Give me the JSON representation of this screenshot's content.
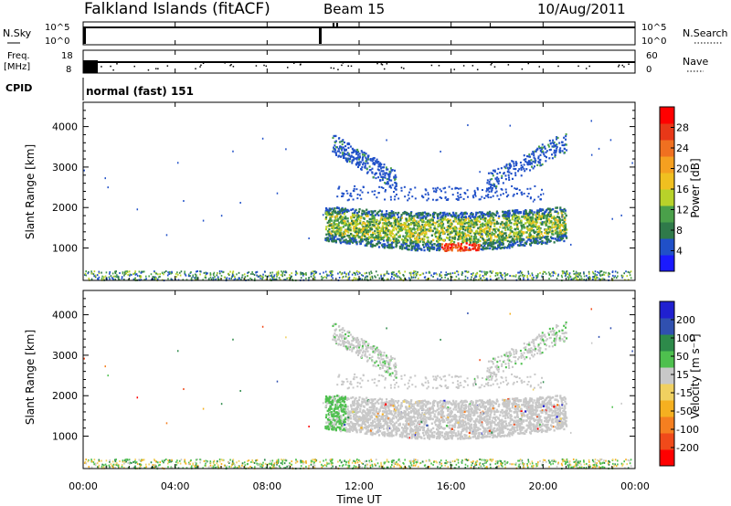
{
  "header": {
    "station": "Falkland Islands (fitACF)",
    "beam": "Beam 15",
    "date": "10/Aug/2011"
  },
  "left_labels": {
    "nsky": "N.Sky",
    "freq_line1": "Freq.",
    "freq_line2": "[MHz]",
    "cpid": "CPID"
  },
  "right_labels": {
    "nsearch": "N.Search",
    "nave": "Nave"
  },
  "cpid_text": "normal (fast) 151",
  "colors": {
    "power_scale": [
      "#1a1aff",
      "#2050c8",
      "#2f7a4a",
      "#4aa04a",
      "#b8d22a",
      "#f0c020",
      "#f5a020",
      "#f07020",
      "#e83818",
      "#ff0000"
    ],
    "velocity_scale": [
      "#ff0000",
      "#f04a1a",
      "#f57f20",
      "#f5b020",
      "#f0d060",
      "#c8c8c8",
      "#4ec04e",
      "#2d8a4a",
      "#3050b0",
      "#2020d0"
    ]
  },
  "chart_data": [
    {
      "type": "line",
      "panel": "nsky-nsearch",
      "left_ticks": [
        "10^5",
        "10^0"
      ],
      "right_ticks": [
        "10^5",
        "10^0"
      ],
      "grid": false
    },
    {
      "type": "line",
      "panel": "freq-nave",
      "left_ticks": [
        "18",
        "8"
      ],
      "right_ticks": [
        "60",
        "0"
      ],
      "grid": false
    },
    {
      "type": "heatmap",
      "panel": "power",
      "ylabel": "Slant Range [km]",
      "xlabel": "Time UT",
      "ylim": [
        200,
        4600
      ],
      "y_ticks": [
        "4000",
        "3000",
        "2000",
        "1000"
      ],
      "x_ticks": [
        "00:00",
        "04:00",
        "08:00",
        "12:00",
        "16:00",
        "20:00",
        "00:00"
      ],
      "colorbar_label": "Power [dB]",
      "colorbar_ticks": [
        "28",
        "24",
        "20",
        "16",
        "12",
        "8",
        "4"
      ],
      "regions": [
        {
          "t_start": 10.5,
          "t_end": 21.0,
          "r_low": 900,
          "r_high": 2200,
          "level": "high"
        },
        {
          "t_start": 15.5,
          "t_end": 17.0,
          "r_low": 850,
          "r_high": 1100,
          "level": "peak"
        },
        {
          "t_start": 11.0,
          "t_end": 21.0,
          "r_low": 2600,
          "r_high": 4200,
          "level": "low"
        }
      ]
    },
    {
      "type": "heatmap",
      "panel": "velocity",
      "ylabel": "Slant Range [km]",
      "xlabel": "Time UT",
      "ylim": [
        200,
        4600
      ],
      "y_ticks": [
        "4000",
        "3000",
        "2000",
        "1000"
      ],
      "x_ticks": [
        "00:00",
        "04:00",
        "08:00",
        "12:00",
        "16:00",
        "20:00",
        "00:00"
      ],
      "colorbar_label": "Velocity [m s⁻¹]",
      "colorbar_ticks": [
        "200",
        "100",
        "50",
        "15",
        "-15",
        "-50",
        "-100",
        "-200"
      ],
      "regions": [
        {
          "t_start": 10.5,
          "t_end": 21.0,
          "r_low": 900,
          "r_high": 2200,
          "level": "ground"
        },
        {
          "t_start": 10.5,
          "t_end": 11.5,
          "r_low": 1300,
          "r_high": 2300,
          "level": "positive"
        }
      ]
    }
  ]
}
